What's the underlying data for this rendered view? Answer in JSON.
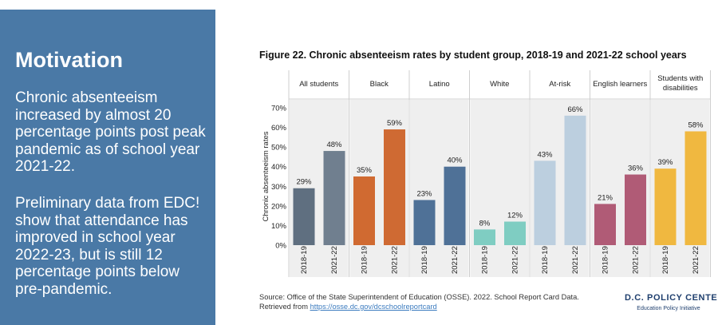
{
  "slide": {
    "title": "Motivation",
    "para1": "Chronic absenteeism increased by almost 20 percentage points post peak pandemic as of school year 2021-22.",
    "para2": "Preliminary data from EDC! show that attendance has improved in school year 2022-23, but is still 12 percentage points below pre-pandemic.",
    "panel_color": "#4a79a6"
  },
  "figure": {
    "title": "Figure 22. Chronic absenteeism rates by student group, 2018-19 and 2021-22 school years",
    "source_text": "Source: Office of the State Superintendent of Education (OSSE). 2022. School Report Card Data. Retrieved from",
    "source_link": "https://osse.dc.gov/dcschoolreportcard",
    "logo_main": "D.C. POLICY CENTER",
    "logo_sub": "Education Policy Initiative"
  },
  "chart_data": {
    "type": "bar",
    "title": "Figure 22. Chronic absenteeism rates by student group, 2018-19 and 2021-22 school years",
    "ylabel": "Chronic absenteeism rates",
    "xlabel": "",
    "ylim": [
      0,
      70
    ],
    "yticks": [
      0,
      10,
      20,
      30,
      40,
      50,
      60,
      70
    ],
    "grid": false,
    "legend": "none",
    "x_labels": [
      "2018-19",
      "2021-22"
    ],
    "groups": [
      {
        "name": "All students",
        "values": [
          29,
          48
        ],
        "labels": [
          "29%",
          "48%"
        ],
        "colors": [
          "#5f6f80",
          "#707f8f"
        ]
      },
      {
        "name": "Black",
        "values": [
          35,
          59
        ],
        "labels": [
          "35%",
          "59%"
        ],
        "colors": [
          "#d06a31",
          "#cf6a33"
        ]
      },
      {
        "name": "Latino",
        "values": [
          23,
          40
        ],
        "labels": [
          "23%",
          "40%"
        ],
        "colors": [
          "#4f7197",
          "#4f7197"
        ]
      },
      {
        "name": "White",
        "values": [
          8,
          12
        ],
        "labels": [
          "8%",
          "12%"
        ],
        "colors": [
          "#7fcdc2",
          "#7fcdc2"
        ]
      },
      {
        "name": "At-risk",
        "values": [
          43,
          66
        ],
        "labels": [
          "43%",
          "66%"
        ],
        "colors": [
          "#bccfdf",
          "#bccfdf"
        ]
      },
      {
        "name": "English learners",
        "values": [
          21,
          36
        ],
        "labels": [
          "21%",
          "36%"
        ],
        "colors": [
          "#b05b76",
          "#b05b76"
        ]
      },
      {
        "name": "Students with\ndisabilities",
        "values": [
          39,
          58
        ],
        "labels": [
          "39%",
          "58%"
        ],
        "colors": [
          "#f0b840",
          "#f0b840"
        ]
      }
    ]
  }
}
